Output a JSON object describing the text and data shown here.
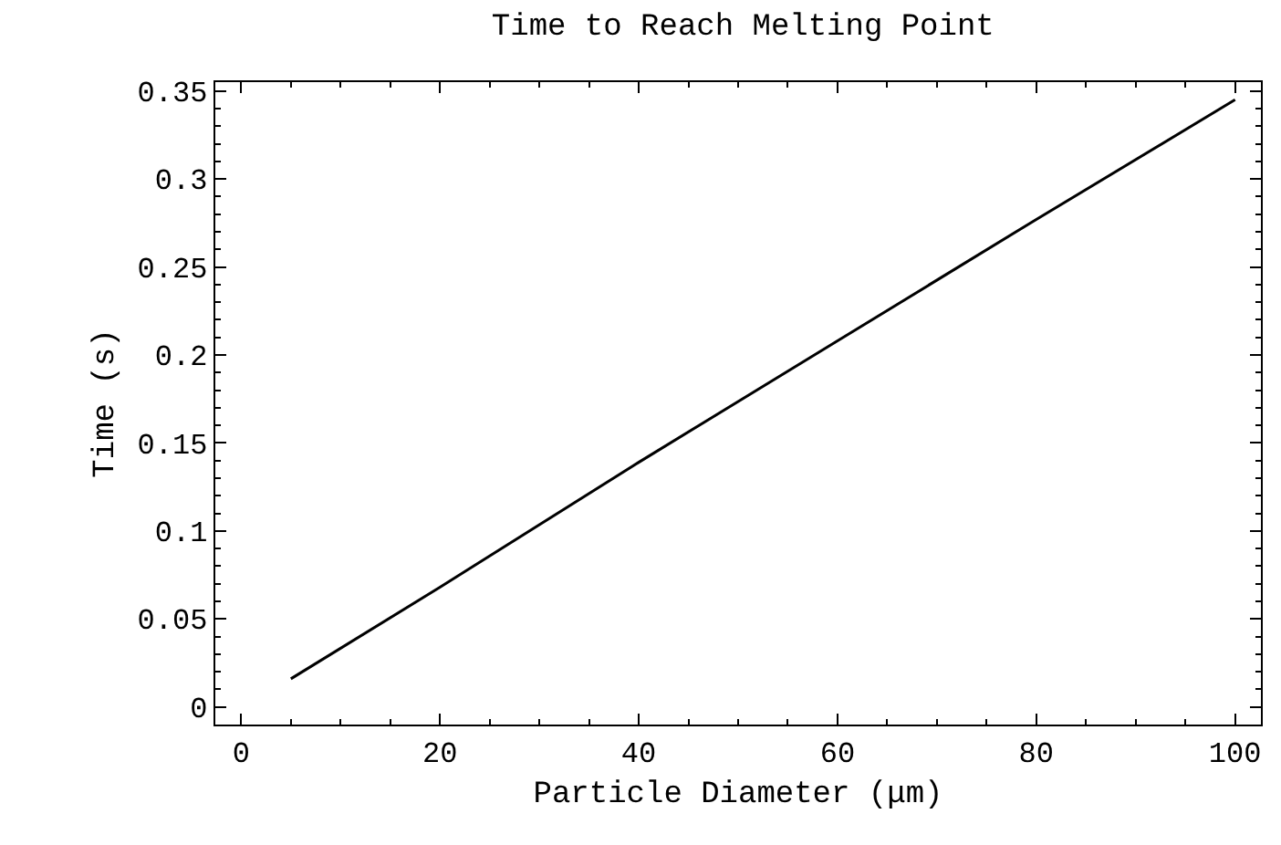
{
  "chart_data": {
    "type": "line",
    "title": "Time to Reach Melting Point",
    "xlabel": "Particle Diameter (μm)",
    "ylabel": "Time (s)",
    "x": [
      5,
      20,
      40,
      60,
      80,
      100
    ],
    "series": [
      {
        "color": "#000000",
        "values": [
          0.016,
          0.068,
          0.139,
          0.208,
          0.277,
          0.345
        ]
      }
    ],
    "xlim": [
      -2.6,
      102.6
    ],
    "xticks": [
      0,
      20,
      40,
      60,
      80,
      100
    ],
    "ylim": [
      -0.01,
      0.355
    ],
    "yticks": [
      0,
      0.05,
      0.1,
      0.15,
      0.2,
      0.25,
      0.3,
      0.35
    ],
    "grid": false,
    "marker": "none",
    "line_style": "solid"
  }
}
